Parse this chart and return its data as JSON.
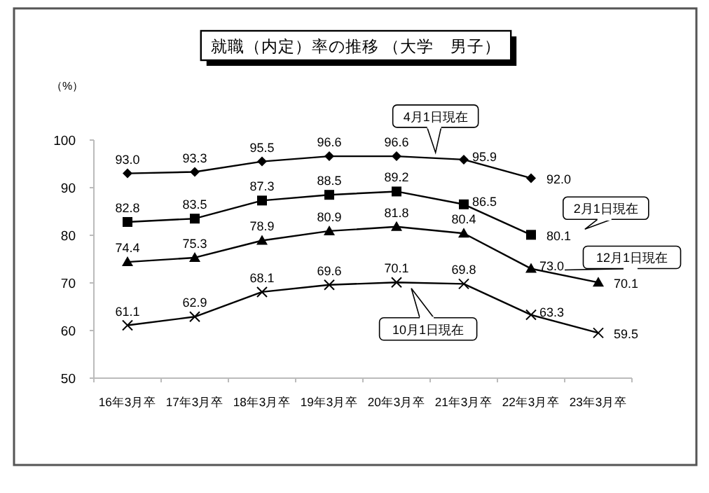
{
  "chart_data": {
    "type": "line",
    "title": "就職（内定）率の推移 （大学　男子）",
    "ylabel": "（%）",
    "categories": [
      "16年3月卒",
      "17年3月卒",
      "18年3月卒",
      "19年3月卒",
      "20年3月卒",
      "21年3月卒",
      "22年3月卒",
      "23年3月卒"
    ],
    "series": [
      {
        "name": "4月1日現在",
        "color": "#000000",
        "marker": "diamond",
        "values": [
          93.0,
          93.3,
          95.5,
          96.6,
          96.6,
          95.9,
          92.0,
          null
        ],
        "value_labels": [
          "93.0",
          "93.3",
          "95.5",
          "96.6",
          "96.6",
          "95.9",
          "92.0",
          null
        ]
      },
      {
        "name": "2月1日現在",
        "color": "#000000",
        "marker": "square",
        "values": [
          82.8,
          83.5,
          87.3,
          88.5,
          89.2,
          86.5,
          80.1,
          null
        ],
        "value_labels": [
          "82.8",
          "83.5",
          "87.3",
          "88.5",
          "89.2",
          "86.5",
          "80.1",
          null
        ]
      },
      {
        "name": "12月1日現在",
        "color": "#000000",
        "marker": "triangle",
        "values": [
          74.4,
          75.3,
          78.9,
          80.9,
          81.8,
          80.4,
          73.0,
          70.1
        ],
        "value_labels": [
          "74.4",
          "75.3",
          "78.9",
          "80.9",
          "81.8",
          "80.4",
          "73.0",
          "70.1"
        ]
      },
      {
        "name": "10月1日現在",
        "color": "#000000",
        "marker": "cross",
        "values": [
          61.1,
          62.9,
          68.1,
          69.6,
          70.1,
          69.8,
          63.3,
          59.5
        ],
        "value_labels": [
          "61.1",
          "62.9",
          "68.1",
          "69.6",
          "70.1",
          "69.8",
          "63.3",
          "59.5"
        ]
      }
    ],
    "ylim": [
      50,
      100
    ],
    "yticks": [
      50,
      60,
      70,
      80,
      90,
      100
    ],
    "grid": false
  }
}
